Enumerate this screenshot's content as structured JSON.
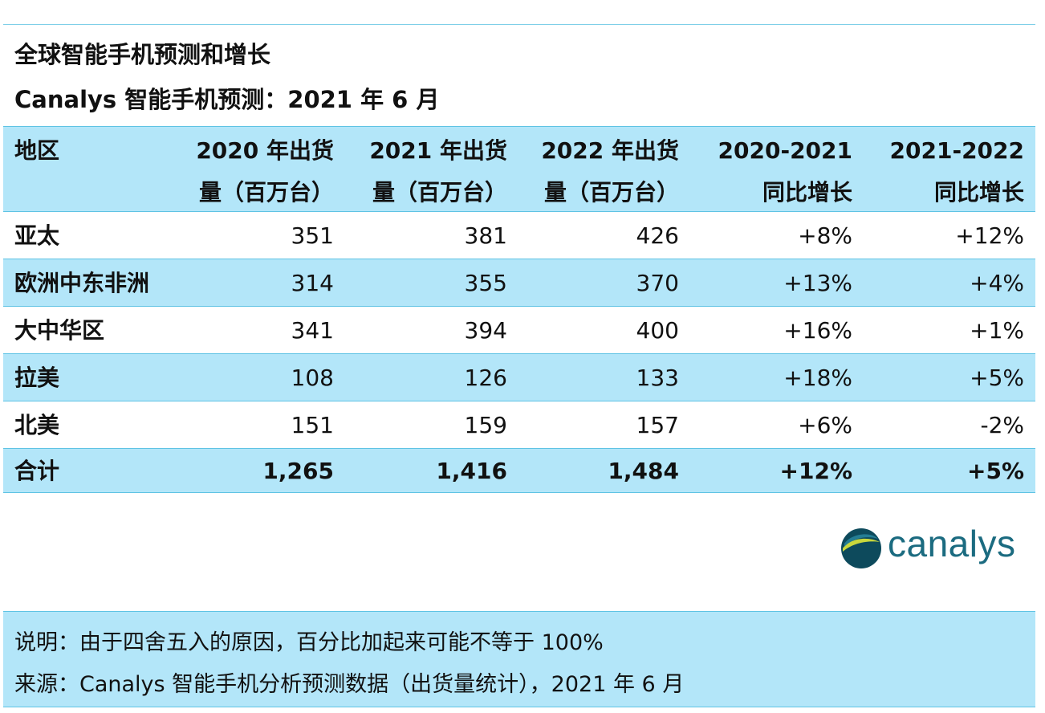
{
  "title": "全球智能手机预测和增长",
  "subtitle": "Canalys 智能手机预测：2021 年 6 月",
  "table": {
    "headers": {
      "region": "地区",
      "col1": [
        "2020 年出货",
        "量（百万台）"
      ],
      "col2": [
        "2021 年出货",
        "量（百万台）"
      ],
      "col3": [
        "2022 年出货",
        "量（百万台）"
      ],
      "col4": [
        "2020-2021",
        "同比增长"
      ],
      "col5": [
        "2021-2022",
        "同比增长"
      ]
    },
    "rows": [
      {
        "region": "亚太",
        "v2020": "351",
        "v2021": "381",
        "v2022": "426",
        "g2021": "+8%",
        "g2022": "+12%"
      },
      {
        "region": "欧洲中东非洲",
        "v2020": "314",
        "v2021": "355",
        "v2022": "370",
        "g2021": "+13%",
        "g2022": "+4%"
      },
      {
        "region": "大中华区",
        "v2020": "341",
        "v2021": "394",
        "v2022": "400",
        "g2021": "+16%",
        "g2022": "+1%"
      },
      {
        "region": "拉美",
        "v2020": "108",
        "v2021": "126",
        "v2022": "133",
        "g2021": "+18%",
        "g2022": "+5%"
      },
      {
        "region": "北美",
        "v2020": "151",
        "v2021": "159",
        "v2022": "157",
        "g2021": "+6%",
        "g2022": "-2%"
      }
    ],
    "total": {
      "region": "合计",
      "v2020": "1,265",
      "v2021": "1,416",
      "v2022": "1,484",
      "g2021": "+12%",
      "g2022": "+5%"
    }
  },
  "logo": {
    "text": "canalys",
    "colors": {
      "dark": "#0d4a5c",
      "accent": "#c9d83c",
      "text": "#1b6b80"
    }
  },
  "notes": {
    "note": "说明：由于四舍五入的原因，百分比加起来可能不等于 100%",
    "source": "来源：Canalys 智能手机分析预测数据（出货量统计），2021 年 6 月"
  },
  "colors": {
    "band": "#b3e6f9",
    "rule": "#5fc3e4"
  }
}
